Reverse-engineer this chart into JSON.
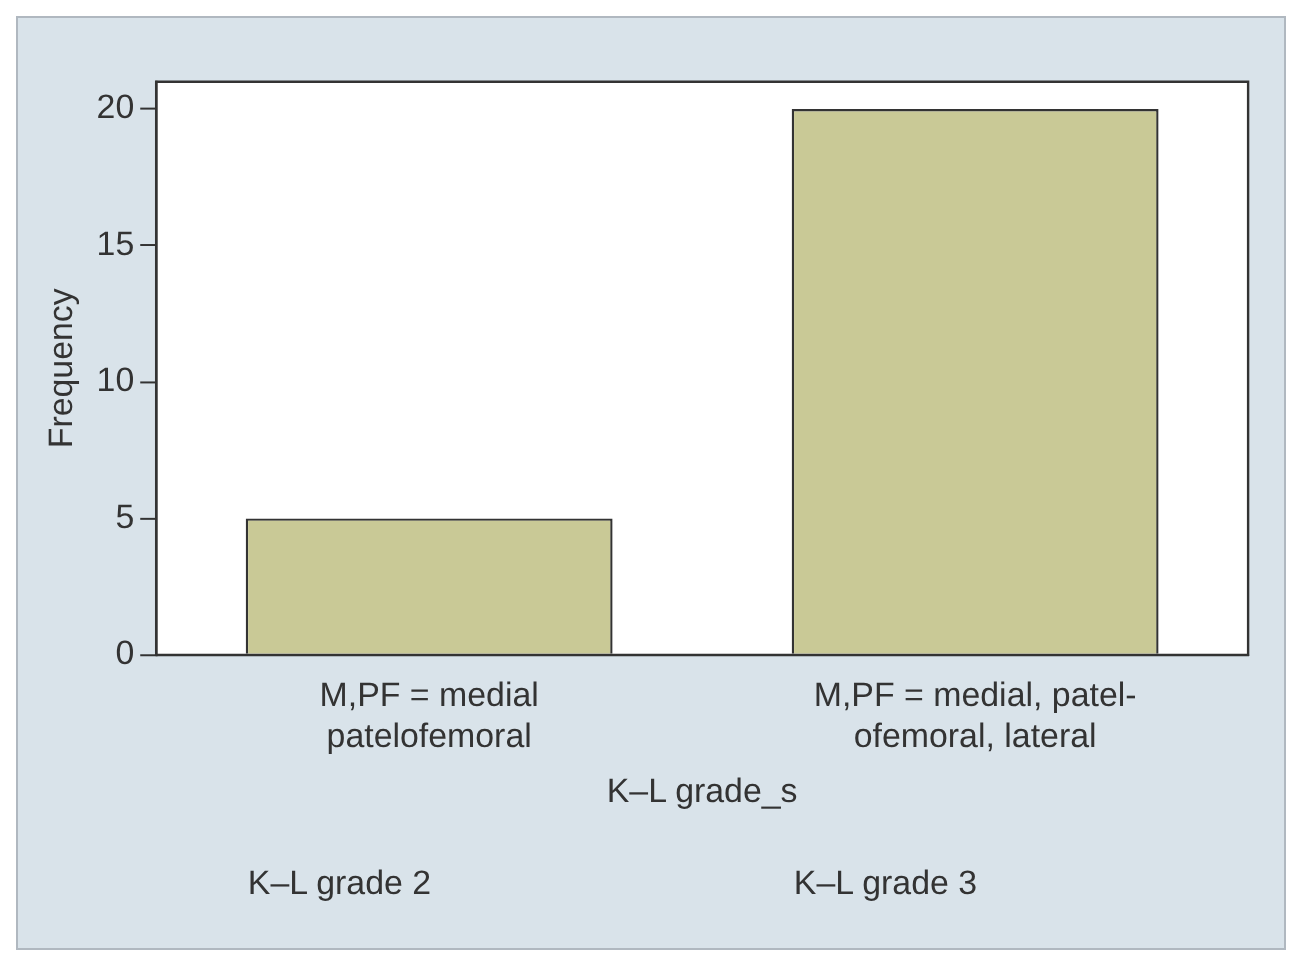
{
  "chart_data": {
    "type": "bar",
    "categories": [
      "M,PF = medial\npatelofemoral",
      "M,PF = medial, patel-\nofemoral, lateral"
    ],
    "values": [
      5,
      20
    ],
    "color": "#c9c996",
    "xlabel": "K–L grade_s",
    "ylabel": "Frequency",
    "ylim": [
      0,
      21
    ],
    "yticks": [
      0,
      5,
      10,
      15,
      20
    ],
    "grid": false,
    "legend": false,
    "annotations": [
      "K–L grade 2",
      "K–L grade 3"
    ]
  }
}
